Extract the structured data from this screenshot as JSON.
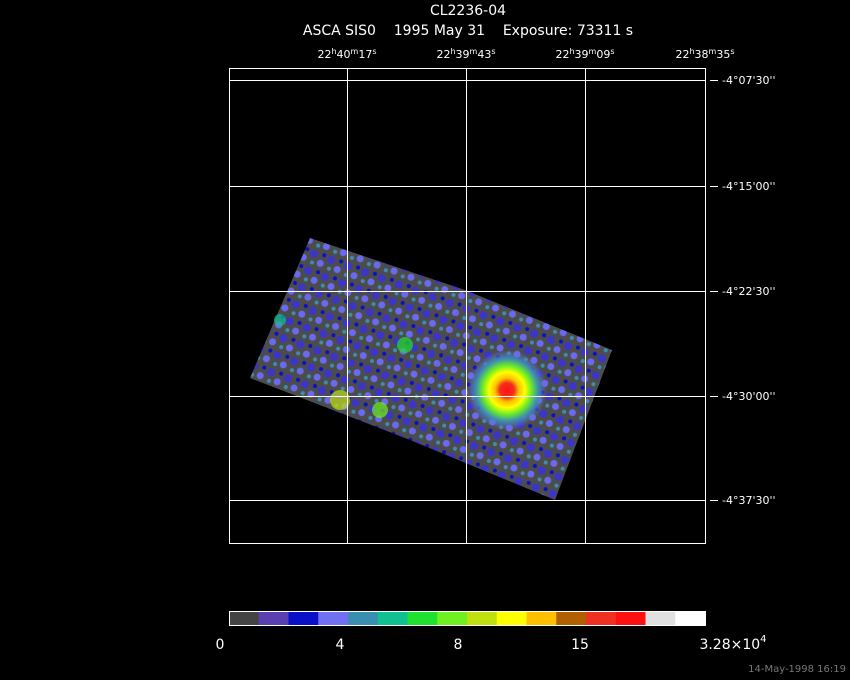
{
  "header": {
    "title": "CL2236-04",
    "subtitle": "ASCA SIS0    1995 May 31    Exposure: 73311 s"
  },
  "ra_labels": [
    [
      "22",
      "h",
      "40",
      "m",
      "17",
      "s"
    ],
    [
      "22",
      "h",
      "39",
      "m",
      "43",
      "s"
    ],
    [
      "22",
      "h",
      "39",
      "m",
      "09",
      "s"
    ],
    [
      "22",
      "h",
      "38",
      "m",
      "35",
      "s"
    ]
  ],
  "dec_labels": [
    "-4°07'30''",
    "-4°15'00''",
    "-4°22'30''",
    "-4°30'00''",
    "-4°37'30''"
  ],
  "colorbar": {
    "labels": [
      "0",
      "4",
      "8",
      "15"
    ],
    "max_label": [
      "3.28×10",
      "4"
    ]
  },
  "footer": "14-May-1998 16:19"
}
